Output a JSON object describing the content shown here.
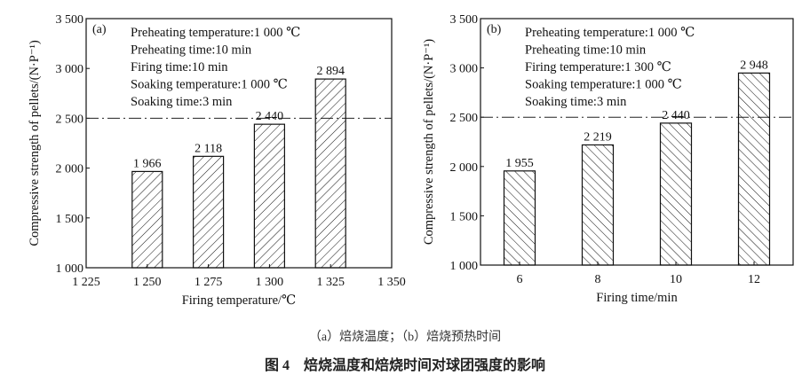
{
  "chart_data": [
    {
      "type": "bar",
      "panel_label": "(a)",
      "xlabel": "Firing temperature/℃",
      "ylabel": "Compressive strength of pellets/(N·P⁻¹)",
      "x_ticks": [
        "1 225",
        "1 250",
        "1 275",
        "1 300",
        "1 325",
        "1 350"
      ],
      "xlim": [
        1225,
        1350
      ],
      "x": [
        1250,
        1275,
        1300,
        1325
      ],
      "values": [
        1966,
        2118,
        2440,
        2894
      ],
      "value_labels": [
        "1 966",
        "2 118",
        "2 440",
        "2 894"
      ],
      "y_ticks": [
        "1 000",
        "1 500",
        "2 000",
        "2 500",
        "3 000",
        "3 500"
      ],
      "ylim": [
        1000,
        3500
      ],
      "reference_line": 2500,
      "hatch": "forward-diagonal",
      "annotations": [
        "Preheating temperature:1 000 ℃",
        "Preheating time:10 min",
        "Firing time:10 min",
        "Soaking temperature:1 000 ℃",
        "Soaking time:3 min"
      ],
      "grid": false
    },
    {
      "type": "bar",
      "panel_label": "(b)",
      "xlabel": "Firing time/min",
      "ylabel": "Compressive strength of pellets/(N·P⁻¹)",
      "categories": [
        "6",
        "8",
        "10",
        "12"
      ],
      "values": [
        1955,
        2219,
        2440,
        2948
      ],
      "value_labels": [
        "1 955",
        "2 219",
        "2 440",
        "2 948"
      ],
      "y_ticks": [
        "1 000",
        "1 500",
        "2 000",
        "2 500",
        "3 000",
        "3 500"
      ],
      "ylim": [
        1000,
        3500
      ],
      "reference_line": 2500,
      "hatch": "backward-diagonal",
      "annotations": [
        "Preheating temperature:1 000 ℃",
        "Preheating time:10 min",
        "Firing temperature:1 300 ℃",
        "Soaking temperature:1 000 ℃",
        "Soaking time:3 min"
      ],
      "grid": false
    }
  ],
  "caption": {
    "subcaption": "（a）焙烧温度；（b）焙烧预热时间",
    "title": "图 4　焙烧温度和焙烧时间对球团强度的影响"
  }
}
